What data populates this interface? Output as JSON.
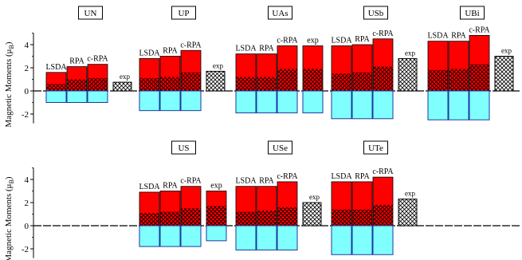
{
  "ylabel": "Magnetic Moments (μB)",
  "ylabel_main": "Magnetic Moments (μ",
  "ylabel_sub": "B",
  "ylabel_close": ")",
  "y_ticks": [
    "4",
    "2",
    "0",
    "-2"
  ],
  "colors": {
    "total": "#ff0000",
    "orbital": "#ff0000",
    "spin": "#80ffff",
    "hatch": "#000000",
    "exp": "#ffffff"
  },
  "chart_data": {
    "type": "bar",
    "ylim": [
      -2.8,
      5.2
    ],
    "legend": "none",
    "grid": false,
    "panels": [
      {
        "label": "UN",
        "row": 0,
        "col": 0,
        "bars": [
          {
            "method": "LSDA",
            "total": 1.6,
            "hatched": 0.6,
            "spin": -1.0
          },
          {
            "method": "RPA",
            "total": 2.1,
            "hatched": 1.0,
            "spin": -1.0
          },
          {
            "method": "c-RPA",
            "total": 2.3,
            "hatched": 1.1,
            "spin": -1.0
          },
          {
            "method": "exp",
            "total": 0.75,
            "hatched": 0.75,
            "spin": 0,
            "exp": true
          }
        ]
      },
      {
        "label": "UP",
        "row": 0,
        "col": 1,
        "bars": [
          {
            "method": "LSDA",
            "total": 2.8,
            "hatched": 1.1,
            "spin": -1.7
          },
          {
            "method": "RPA",
            "total": 3.0,
            "hatched": 1.2,
            "spin": -1.7
          },
          {
            "method": "c-RPA",
            "total": 3.5,
            "hatched": 1.6,
            "spin": -1.7
          },
          {
            "method": "exp",
            "total": 1.7,
            "hatched": 1.7,
            "spin": 0,
            "exp": true
          }
        ]
      },
      {
        "label": "UAs",
        "row": 0,
        "col": 2,
        "bars": [
          {
            "method": "LSDA",
            "total": 3.2,
            "hatched": 1.2,
            "spin": -1.9
          },
          {
            "method": "RPA",
            "total": 3.2,
            "hatched": 1.2,
            "spin": -1.9
          },
          {
            "method": "c-RPA",
            "total": 3.9,
            "hatched": 1.9,
            "spin": -1.9
          },
          {
            "method": "exp",
            "total": 3.9,
            "hatched": 1.9,
            "spin": -1.9
          }
        ]
      },
      {
        "label": "USb",
        "row": 0,
        "col": 3,
        "bars": [
          {
            "method": "LSDA",
            "total": 3.9,
            "hatched": 1.5,
            "spin": -2.4
          },
          {
            "method": "RPA",
            "total": 4.0,
            "hatched": 1.6,
            "spin": -2.4
          },
          {
            "method": "c-RPA",
            "total": 4.5,
            "hatched": 2.1,
            "spin": -2.4
          },
          {
            "method": "exp",
            "total": 2.8,
            "hatched": 2.8,
            "spin": 0,
            "exp": true
          }
        ]
      },
      {
        "label": "UBi",
        "row": 0,
        "col": 4,
        "bars": [
          {
            "method": "LSDA",
            "total": 4.3,
            "hatched": 1.8,
            "spin": -2.5
          },
          {
            "method": "RPA",
            "total": 4.3,
            "hatched": 1.9,
            "spin": -2.5
          },
          {
            "method": "c-RPA",
            "total": 4.8,
            "hatched": 2.3,
            "spin": -2.5
          },
          {
            "method": "exp",
            "total": 3.0,
            "hatched": 3.0,
            "spin": 0,
            "exp": true
          }
        ]
      },
      {
        "label": "US",
        "row": 1,
        "col": 1,
        "bars": [
          {
            "method": "LSDA",
            "total": 2.9,
            "hatched": 1.1,
            "spin": -1.8
          },
          {
            "method": "RPA",
            "total": 3.0,
            "hatched": 1.2,
            "spin": -1.8
          },
          {
            "method": "c-RPA",
            "total": 3.4,
            "hatched": 1.5,
            "spin": -1.8
          },
          {
            "method": "exp",
            "total": 3.0,
            "hatched": 1.7,
            "spin": -1.3
          }
        ]
      },
      {
        "label": "USe",
        "row": 1,
        "col": 2,
        "bars": [
          {
            "method": "LSDA",
            "total": 3.4,
            "hatched": 1.2,
            "spin": -2.1
          },
          {
            "method": "RPA",
            "total": 3.4,
            "hatched": 1.3,
            "spin": -2.1
          },
          {
            "method": "c-RPA",
            "total": 3.8,
            "hatched": 1.6,
            "spin": -2.1
          },
          {
            "method": "exp",
            "total": 2.0,
            "hatched": 2.0,
            "spin": 0,
            "exp": true
          }
        ]
      },
      {
        "label": "UTe",
        "row": 1,
        "col": 3,
        "bars": [
          {
            "method": "LSDA",
            "total": 3.8,
            "hatched": 1.4,
            "spin": -2.5
          },
          {
            "method": "RPA",
            "total": 3.8,
            "hatched": 1.4,
            "spin": -2.5
          },
          {
            "method": "c-RPA",
            "total": 4.2,
            "hatched": 1.8,
            "spin": -2.5
          },
          {
            "method": "exp",
            "total": 2.3,
            "hatched": 2.3,
            "spin": 0,
            "exp": true
          }
        ]
      }
    ]
  }
}
